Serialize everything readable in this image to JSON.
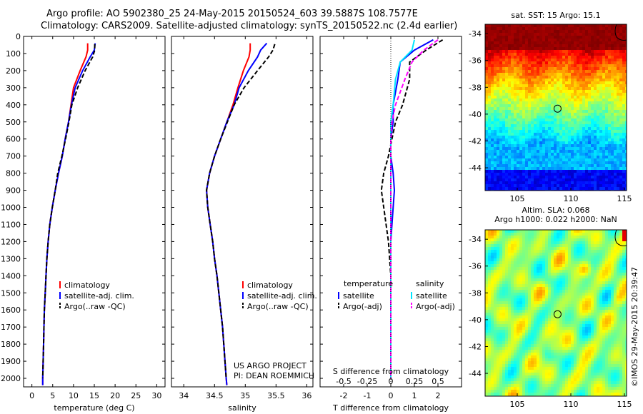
{
  "header": {
    "title_line1": "Argo profile: AO 5902380_25 24-May-2015 20150524_603 39.5887S 108.7577E",
    "title_line2": "Climatology: CARS2009. Satellite-adjusted climatology: synTS_20150522.nc (2.4d earlier)"
  },
  "side_label": "©IMOS 29-May-2015 20:39:47",
  "colors": {
    "climatology": "#ff0000",
    "satellite": "#0000ff",
    "argo": "#000000",
    "sat_diff": "#00e5ff",
    "argo_adj": "#ff00ff"
  },
  "chart_data": [
    {
      "type": "line",
      "panel": "temperature",
      "xlabel": "temperature (deg C)",
      "ylim": [
        2050,
        0
      ],
      "xlim": [
        -2,
        32
      ],
      "xticks": [
        "0",
        "5",
        "10",
        "15",
        "20",
        "25",
        "30"
      ],
      "yticks": [
        "0",
        "100",
        "200",
        "300",
        "400",
        "500",
        "600",
        "700",
        "800",
        "900",
        "1000",
        "1100",
        "1200",
        "1300",
        "1400",
        "1500",
        "1600",
        "1700",
        "1800",
        "1900",
        "2000"
      ],
      "series": [
        {
          "name": "climatology",
          "color": "#ff0000",
          "style": "solid",
          "x": [
            13.4,
            13.4,
            13.0,
            11.6,
            10.0,
            9.4,
            8.8,
            8.0,
            7.3,
            6.4,
            5.6,
            4.9,
            4.3,
            3.9,
            3.6,
            3.4,
            3.2,
            3.0,
            2.9,
            2.8,
            2.7,
            2.6,
            2.6
          ],
          "y": [
            40,
            80,
            120,
            200,
            300,
            400,
            500,
            600,
            700,
            800,
            900,
            1000,
            1100,
            1200,
            1300,
            1400,
            1500,
            1600,
            1700,
            1800,
            1900,
            2000,
            2040
          ]
        },
        {
          "name": "satellite-adj. clim.",
          "color": "#0000ff",
          "style": "solid",
          "x": [
            15.2,
            15.0,
            14.0,
            12.2,
            10.4,
            9.5,
            8.8,
            8.0,
            7.3,
            6.4,
            5.6,
            4.9,
            4.3,
            3.9,
            3.6,
            3.4,
            3.2,
            3.0,
            2.9,
            2.8,
            2.7,
            2.6,
            2.6
          ],
          "y": [
            40,
            80,
            120,
            200,
            300,
            400,
            500,
            600,
            700,
            800,
            900,
            1000,
            1100,
            1200,
            1300,
            1400,
            1500,
            1600,
            1700,
            1800,
            1900,
            2000,
            2040
          ]
        },
        {
          "name": "Argo(..raw -QC)",
          "color": "#000000",
          "style": "dashed",
          "x": [
            15.1,
            15.1,
            14.6,
            12.8,
            11.0,
            9.6,
            8.9,
            8.1,
            7.2,
            6.2,
            5.6,
            4.9,
            4.3,
            3.9,
            3.6,
            3.4,
            3.2,
            3.0,
            2.9,
            2.8,
            2.7,
            2.6
          ],
          "y": [
            45,
            80,
            120,
            200,
            300,
            400,
            500,
            600,
            700,
            800,
            900,
            1000,
            1100,
            1200,
            1300,
            1400,
            1500,
            1600,
            1700,
            1800,
            1900,
            2000
          ]
        }
      ],
      "legend": [
        "climatology",
        "satellite-adj. clim.",
        "Argo(..raw -QC)"
      ]
    },
    {
      "type": "line",
      "panel": "salinity",
      "xlabel": "salinity",
      "ylim": [
        2050,
        0
      ],
      "xlim": [
        33.8,
        36.1
      ],
      "xticks": [
        "34",
        "34.5",
        "35",
        "35.5",
        "36"
      ],
      "series": [
        {
          "name": "climatology",
          "color": "#ff0000",
          "style": "solid",
          "x": [
            35.08,
            35.08,
            35.06,
            34.97,
            34.88,
            34.8,
            34.7,
            34.6,
            34.5,
            34.42,
            34.37,
            34.39,
            34.43,
            34.47,
            34.5,
            34.54,
            34.57,
            34.6,
            34.63,
            34.65,
            34.67,
            34.69,
            34.7
          ],
          "y": [
            40,
            80,
            120,
            200,
            300,
            400,
            500,
            600,
            700,
            800,
            900,
            1000,
            1100,
            1200,
            1300,
            1400,
            1500,
            1600,
            1700,
            1800,
            1900,
            2000,
            2040
          ]
        },
        {
          "name": "satellite-adj. clim.",
          "color": "#0000ff",
          "style": "solid",
          "x": [
            35.35,
            35.25,
            35.2,
            35.05,
            34.9,
            34.82,
            34.7,
            34.6,
            34.5,
            34.42,
            34.37,
            34.39,
            34.43,
            34.47,
            34.5,
            34.54,
            34.57,
            34.6,
            34.63,
            34.65,
            34.67,
            34.69,
            34.7
          ],
          "y": [
            40,
            80,
            120,
            200,
            300,
            400,
            500,
            600,
            700,
            800,
            900,
            1000,
            1100,
            1200,
            1300,
            1400,
            1500,
            1600,
            1700,
            1800,
            1900,
            2000,
            2040
          ]
        },
        {
          "name": "Argo(..raw -QC)",
          "color": "#000000",
          "style": "dashed",
          "x": [
            35.48,
            35.45,
            35.38,
            35.2,
            34.98,
            34.82,
            34.71,
            34.6,
            34.5,
            34.42,
            34.37,
            34.39,
            34.43,
            34.47,
            34.5,
            34.54,
            34.57,
            34.6,
            34.63,
            34.65,
            34.67,
            34.69
          ],
          "y": [
            45,
            80,
            120,
            200,
            300,
            400,
            500,
            600,
            700,
            800,
            900,
            1000,
            1100,
            1200,
            1300,
            1400,
            1500,
            1600,
            1700,
            1800,
            1900,
            2000
          ]
        }
      ],
      "legend": [
        "climatology",
        "satellite-adj. clim.",
        "Argo(..raw -QC)"
      ],
      "annotation": [
        "US ARGO PROJECT",
        "PI: DEAN ROEMMICH"
      ]
    },
    {
      "type": "line",
      "panel": "difference",
      "xlabel": "T difference from climatology",
      "xlabel_top": "S difference from climatology",
      "ylim": [
        2050,
        0
      ],
      "xlim": [
        -3,
        3
      ],
      "xticks": [
        "-2",
        "-1",
        "0",
        "1",
        "2"
      ],
      "xticks_s": [
        "-0.5",
        "-0.25",
        "0",
        "0.25",
        "0.5"
      ],
      "series": [
        {
          "name": "temperature satellite",
          "color": "#0000ff",
          "style": "solid",
          "x": [
            1.8,
            1.0,
            0.4,
            0.3,
            0.1,
            0.1,
            0.0,
            0.0,
            0.1,
            0.15,
            0.1,
            0.05,
            0.0,
            0.0,
            0.0,
            0.0,
            0.0,
            0.0,
            0.0,
            0.0,
            0.0
          ],
          "y": [
            20,
            80,
            150,
            250,
            400,
            500,
            600,
            700,
            800,
            900,
            1000,
            1100,
            1200,
            1300,
            1400,
            1500,
            1600,
            1700,
            1800,
            1900,
            2000
          ]
        },
        {
          "name": "temperature Argo(-adj)",
          "color": "#000000",
          "style": "dashed",
          "x": [
            2.2,
            1.5,
            0.8,
            0.8,
            0.5,
            0.2,
            0.05,
            -0.1,
            -0.3,
            -0.4,
            -0.3,
            -0.2,
            -0.1,
            -0.05,
            0.0,
            0.0,
            0.0,
            0.0,
            0.0,
            0.0,
            0.0
          ],
          "y": [
            20,
            80,
            150,
            250,
            400,
            500,
            600,
            700,
            800,
            900,
            1000,
            1100,
            1200,
            1300,
            1400,
            1500,
            1600,
            1700,
            1800,
            1900,
            2000
          ]
        },
        {
          "name": "salinity satellite",
          "color": "#00e5ff",
          "style": "solid",
          "x": [
            1.0,
            0.9,
            0.4,
            0.2,
            0.1,
            0.0,
            0.0,
            0.0,
            0.0,
            0.0,
            0.0,
            0.0,
            0.0,
            0.0,
            0.0,
            0.0,
            0.0,
            0.0,
            0.0,
            0.0,
            0.0
          ],
          "y": [
            20,
            80,
            150,
            250,
            400,
            500,
            600,
            700,
            800,
            900,
            1000,
            1100,
            1200,
            1300,
            1400,
            1500,
            1600,
            1700,
            1800,
            1900,
            2000
          ]
        },
        {
          "name": "salinity Argo(-adj)",
          "color": "#ff00ff",
          "style": "dashed",
          "x": [
            2.0,
            1.4,
            0.9,
            0.6,
            0.2,
            0.05,
            0.0,
            0.0,
            0.0,
            0.0,
            0.0,
            0.0,
            0.0,
            0.0,
            0.0,
            0.0,
            0.0,
            0.0,
            0.0,
            0.0,
            0.0
          ],
          "y": [
            20,
            80,
            150,
            250,
            400,
            500,
            600,
            700,
            800,
            900,
            1000,
            1100,
            1200,
            1300,
            1400,
            1500,
            1600,
            1700,
            1800,
            1900,
            2000
          ]
        }
      ],
      "legend_headers": [
        "temperature",
        "salinity"
      ],
      "legend": [
        "satellite",
        "Argo(-adj)",
        "satellite",
        "Argo(-adj)"
      ]
    },
    {
      "type": "heatmap",
      "panel": "sat_sst",
      "title": "sat. SST: 15 Argo: 15.1",
      "xticks": [
        "105",
        "110",
        "115"
      ],
      "yticks": [
        "-34",
        "-36",
        "-38",
        "-40",
        "-42",
        "-44"
      ],
      "xlim": [
        102,
        115.2
      ],
      "ylim": [
        -45.7,
        -33.3
      ],
      "marker": {
        "lon": 108.76,
        "lat": -39.59
      }
    },
    {
      "type": "heatmap",
      "panel": "altimetry",
      "title_line1": "Altim. SLA: 0.068",
      "title_line2": "Argo h1000: 0.022 h2000: NaN",
      "xticks": [
        "105",
        "110",
        "115"
      ],
      "yticks": [
        "-34",
        "-36",
        "-38",
        "-40",
        "-42",
        "-44"
      ],
      "xlim": [
        102,
        115.2
      ],
      "ylim": [
        -45.7,
        -33.3
      ],
      "marker": {
        "lon": 108.76,
        "lat": -39.59
      }
    }
  ]
}
